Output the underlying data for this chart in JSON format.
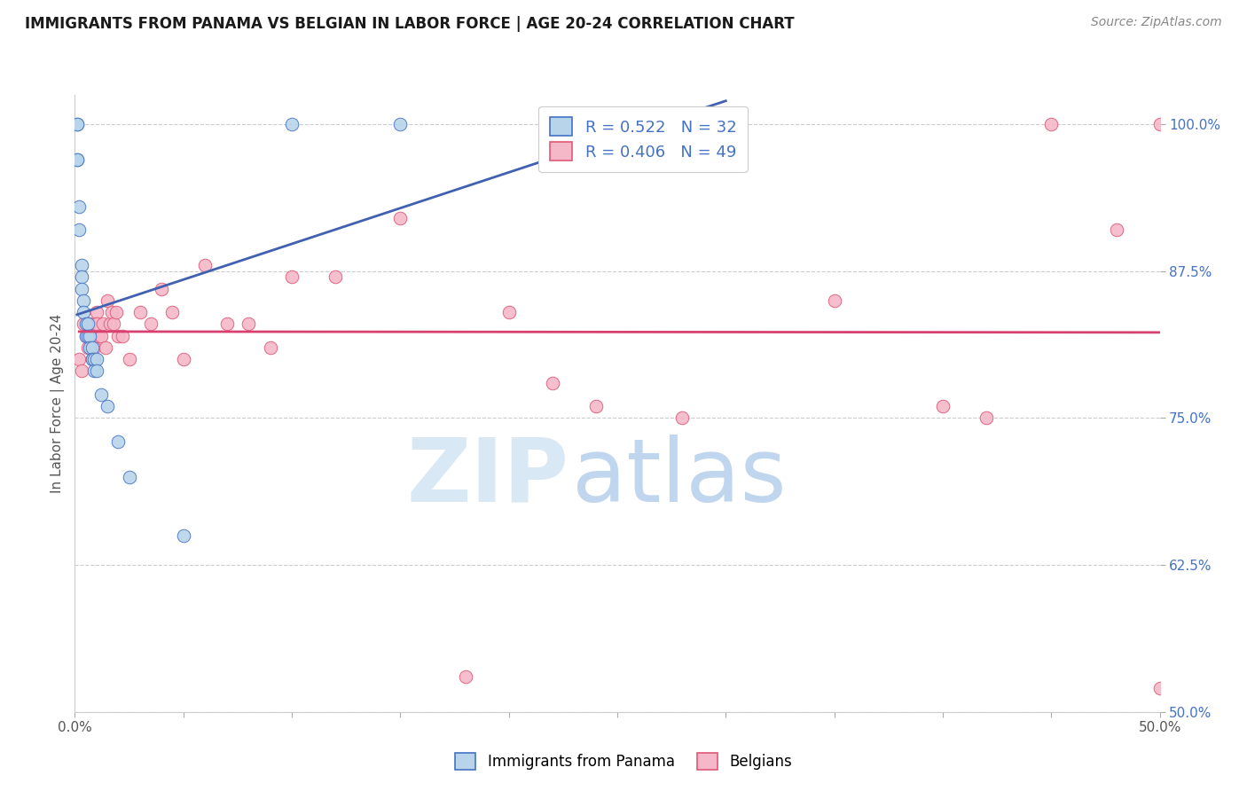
{
  "title": "IMMIGRANTS FROM PANAMA VS BELGIAN IN LABOR FORCE | AGE 20-24 CORRELATION CHART",
  "source_text": "Source: ZipAtlas.com",
  "ylabel": "In Labor Force | Age 20-24",
  "legend_label1": "Immigrants from Panama",
  "legend_label2": "Belgians",
  "r1": 0.522,
  "n1": 32,
  "r2": 0.406,
  "n2": 49,
  "xlim_min": 0.0,
  "xlim_max": 0.5,
  "ylim_min": 0.5,
  "ylim_max": 1.025,
  "yticks": [
    0.5,
    0.625,
    0.75,
    0.875,
    1.0
  ],
  "ytick_labels": [
    "50.0%",
    "62.5%",
    "75.0%",
    "87.5%",
    "100.0%"
  ],
  "xticks": [
    0.0,
    0.05,
    0.1,
    0.15,
    0.2,
    0.25,
    0.3,
    0.35,
    0.4,
    0.45,
    0.5
  ],
  "xtick_labels": [
    "0.0%",
    "",
    "",
    "",
    "",
    "",
    "",
    "",
    "",
    "",
    "50.0%"
  ],
  "color_panama_face": "#b8d4ea",
  "color_belgian_face": "#f5b8c8",
  "color_panama_edge": "#4472c4",
  "color_belgian_edge": "#e05878",
  "line_color_panama": "#4060b0",
  "line_color_belgian": "#d84070",
  "background_color": "#ffffff",
  "watermark_zip_color": "#d8e8f5",
  "watermark_atlas_color": "#c0d5ee",
  "panama_x": [
    0.001,
    0.001,
    0.001,
    0.001,
    0.002,
    0.002,
    0.003,
    0.003,
    0.003,
    0.004,
    0.004,
    0.005,
    0.005,
    0.006,
    0.006,
    0.007,
    0.007,
    0.008,
    0.008,
    0.009,
    0.009,
    0.01,
    0.01,
    0.012,
    0.015,
    0.02,
    0.025,
    0.05,
    0.1,
    0.15,
    0.22,
    0.3
  ],
  "panama_y": [
    1.0,
    1.0,
    0.97,
    0.97,
    0.93,
    0.91,
    0.88,
    0.87,
    0.86,
    0.85,
    0.84,
    0.83,
    0.82,
    0.83,
    0.82,
    0.82,
    0.81,
    0.81,
    0.8,
    0.8,
    0.79,
    0.8,
    0.79,
    0.77,
    0.76,
    0.73,
    0.7,
    0.65,
    1.0,
    1.0,
    1.0,
    1.0
  ],
  "belgian_x": [
    0.002,
    0.003,
    0.004,
    0.005,
    0.006,
    0.006,
    0.007,
    0.008,
    0.008,
    0.009,
    0.01,
    0.01,
    0.011,
    0.012,
    0.013,
    0.014,
    0.015,
    0.016,
    0.017,
    0.018,
    0.019,
    0.02,
    0.022,
    0.025,
    0.03,
    0.035,
    0.04,
    0.045,
    0.05,
    0.06,
    0.07,
    0.08,
    0.09,
    0.1,
    0.12,
    0.15,
    0.18,
    0.2,
    0.22,
    0.24,
    0.28,
    0.3,
    0.35,
    0.4,
    0.42,
    0.45,
    0.48,
    0.5,
    0.5
  ],
  "belgian_y": [
    0.8,
    0.79,
    0.83,
    0.82,
    0.83,
    0.81,
    0.83,
    0.82,
    0.8,
    0.81,
    0.84,
    0.83,
    0.82,
    0.82,
    0.83,
    0.81,
    0.85,
    0.83,
    0.84,
    0.83,
    0.84,
    0.82,
    0.82,
    0.8,
    0.84,
    0.83,
    0.86,
    0.84,
    0.8,
    0.88,
    0.83,
    0.83,
    0.81,
    0.87,
    0.87,
    0.92,
    0.53,
    0.84,
    0.78,
    0.76,
    0.75,
    1.0,
    0.85,
    0.76,
    0.75,
    1.0,
    0.91,
    1.0,
    0.52
  ]
}
